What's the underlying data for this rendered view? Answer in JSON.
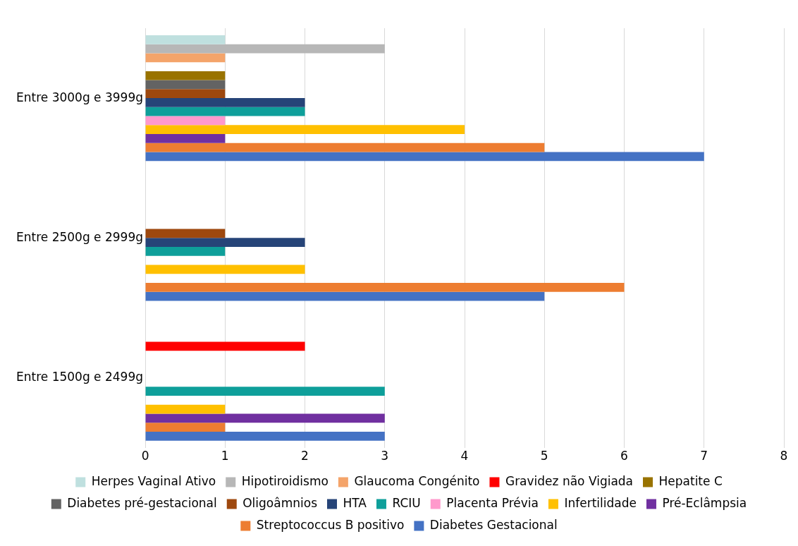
{
  "chart_data": {
    "type": "bar",
    "orientation": "horizontal",
    "categories": [
      "Entre 3000g e 3999g",
      "Entre 2500g e 2999g",
      "Entre 1500g e 2499g"
    ],
    "xlim": [
      0,
      8
    ],
    "xticks": [
      0,
      1,
      2,
      3,
      4,
      5,
      6,
      7,
      8
    ],
    "grid": "x",
    "legend": "bottom",
    "series": [
      {
        "name": "Herpes Vaginal Ativo",
        "color": "#bfe0df",
        "values": [
          1,
          null,
          null
        ]
      },
      {
        "name": "Hipotiroidismo",
        "color": "#b7b7b7",
        "values": [
          3,
          null,
          null
        ]
      },
      {
        "name": "Glaucoma Congénito",
        "color": "#f4a46a",
        "values": [
          1,
          null,
          null
        ]
      },
      {
        "name": "Gravidez não Vigiada",
        "color": "#ff0000",
        "values": [
          null,
          null,
          2
        ]
      },
      {
        "name": "Hepatite C",
        "color": "#997300",
        "values": [
          1,
          null,
          null
        ]
      },
      {
        "name": "Diabetes pré-gestacional",
        "color": "#636363",
        "values": [
          1,
          null,
          null
        ]
      },
      {
        "name": "Oligoâmnios",
        "color": "#9e480e",
        "values": [
          1,
          1,
          null
        ]
      },
      {
        "name": "HTA",
        "color": "#264478",
        "values": [
          2,
          2,
          null
        ]
      },
      {
        "name": "RCIU",
        "color": "#0e9f9a",
        "values": [
          2,
          1,
          3
        ]
      },
      {
        "name": "Placenta Prévia",
        "color": "#ff99cc",
        "values": [
          1,
          null,
          null
        ]
      },
      {
        "name": "Infertilidade",
        "color": "#ffc000",
        "values": [
          4,
          2,
          1
        ]
      },
      {
        "name": "Pré-Eclâmpsia",
        "color": "#7030a0",
        "values": [
          1,
          null,
          3
        ]
      },
      {
        "name": "Streptococcus B positivo",
        "color": "#ed7d31",
        "values": [
          5,
          6,
          1
        ]
      },
      {
        "name": "Diabetes Gestacional",
        "color": "#4472c4",
        "values": [
          7,
          5,
          3
        ]
      }
    ]
  }
}
